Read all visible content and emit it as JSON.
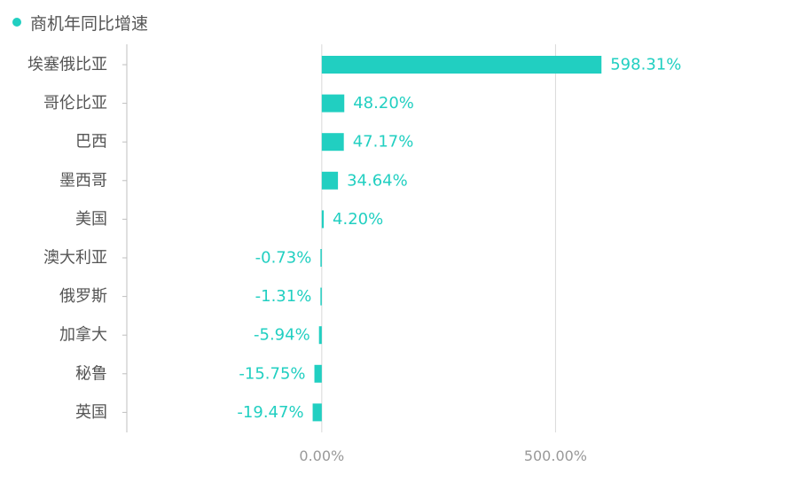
{
  "legend": {
    "label": "商机年同比增速",
    "color": "#21cfc1"
  },
  "chart_data": {
    "type": "bar",
    "orientation": "horizontal",
    "categories": [
      "埃塞俄比亚",
      "哥伦比亚",
      "巴西",
      "墨西哥",
      "美国",
      "澳大利亚",
      "俄罗斯",
      "加拿大",
      "秘鲁",
      "英国"
    ],
    "series": [
      {
        "name": "商机年同比增速",
        "values": [
          598.31,
          48.2,
          47.17,
          34.64,
          4.2,
          -0.73,
          -1.31,
          -5.94,
          -15.75,
          -19.47
        ],
        "labels": [
          "598.31%",
          "48.20%",
          "47.17%",
          "34.64%",
          "4.20%",
          "-0.73%",
          "-1.31%",
          "-5.94%",
          "-15.75%",
          "-19.47%"
        ]
      }
    ],
    "x_ticks": [
      0,
      500
    ],
    "x_tick_labels": [
      "0.00%",
      "500.00%"
    ],
    "xlim": [
      -417,
      1000
    ],
    "grid": true,
    "bar_color": "#21cfc1"
  }
}
